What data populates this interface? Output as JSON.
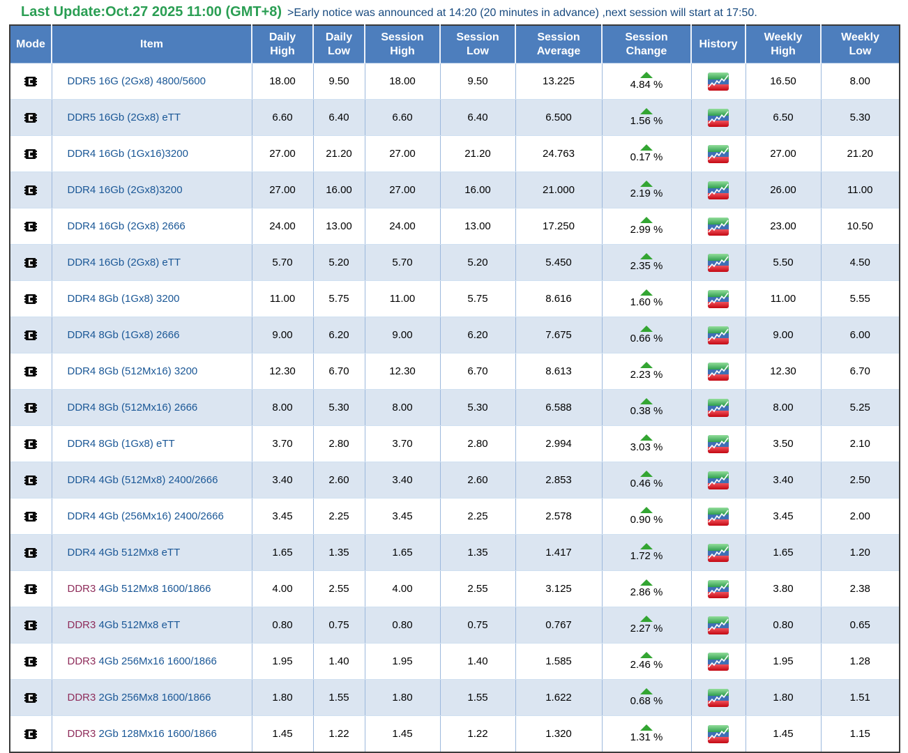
{
  "header_bar": {
    "last_update": "Last Update:Oct.27 2025 11:00 (GMT+8)",
    "notice": ">Early notice was announced at 14:20 (20 minutes in advance) ,next session will start at 17:50."
  },
  "colors": {
    "title_green": "#2a9e53",
    "notice_blue": "#17497e",
    "header_bg": "#4d7ebd",
    "row_alt_bg": "#dbe5f1",
    "item_link_blue": "#1a5796",
    "ddr3_maroon": "#8e2c5a",
    "up_arrow_green": "#33a532",
    "outer_border": "#3a3a3a"
  },
  "icons": {
    "mode": "chip-mode-icon",
    "history": "price-history-chart-icon",
    "change_up": "up-arrow-icon"
  },
  "table": {
    "columns": [
      {
        "key": "mode",
        "label": "Mode"
      },
      {
        "key": "item",
        "label": "Item"
      },
      {
        "key": "daily_high",
        "label": "Daily\nHigh"
      },
      {
        "key": "daily_low",
        "label": "Daily\nLow"
      },
      {
        "key": "session_high",
        "label": "Session\nHigh"
      },
      {
        "key": "session_low",
        "label": "Session\nLow"
      },
      {
        "key": "session_avg",
        "label": "Session\nAverage"
      },
      {
        "key": "session_change",
        "label": "Session\nChange"
      },
      {
        "key": "history",
        "label": "History"
      },
      {
        "key": "weekly_high",
        "label": "Weekly\nHigh"
      },
      {
        "key": "weekly_low",
        "label": "Weekly\nLow"
      }
    ],
    "rows": [
      {
        "prefix": "DDR5",
        "rest": " 16G (2Gx8) 4800/5600",
        "ddr3": false,
        "daily_high": "18.00",
        "daily_low": "9.50",
        "session_high": "18.00",
        "session_low": "9.50",
        "session_avg": "13.225",
        "change": "4.84 %",
        "change_dir": "up",
        "weekly_high": "16.50",
        "weekly_low": "8.00"
      },
      {
        "prefix": "DDR5",
        "rest": " 16Gb (2Gx8) eTT",
        "ddr3": false,
        "daily_high": "6.60",
        "daily_low": "6.40",
        "session_high": "6.60",
        "session_low": "6.40",
        "session_avg": "6.500",
        "change": "1.56 %",
        "change_dir": "up",
        "weekly_high": "6.50",
        "weekly_low": "5.30"
      },
      {
        "prefix": "DDR4",
        "rest": " 16Gb (1Gx16)3200",
        "ddr3": false,
        "daily_high": "27.00",
        "daily_low": "21.20",
        "session_high": "27.00",
        "session_low": "21.20",
        "session_avg": "24.763",
        "change": "0.17 %",
        "change_dir": "up",
        "weekly_high": "27.00",
        "weekly_low": "21.20"
      },
      {
        "prefix": "DDR4",
        "rest": " 16Gb (2Gx8)3200",
        "ddr3": false,
        "daily_high": "27.00",
        "daily_low": "16.00",
        "session_high": "27.00",
        "session_low": "16.00",
        "session_avg": "21.000",
        "change": "2.19 %",
        "change_dir": "up",
        "weekly_high": "26.00",
        "weekly_low": "11.00"
      },
      {
        "prefix": "DDR4",
        "rest": " 16Gb (2Gx8) 2666",
        "ddr3": false,
        "daily_high": "24.00",
        "daily_low": "13.00",
        "session_high": "24.00",
        "session_low": "13.00",
        "session_avg": "17.250",
        "change": "2.99 %",
        "change_dir": "up",
        "weekly_high": "23.00",
        "weekly_low": "10.50"
      },
      {
        "prefix": "DDR4",
        "rest": " 16Gb (2Gx8) eTT",
        "ddr3": false,
        "daily_high": "5.70",
        "daily_low": "5.20",
        "session_high": "5.70",
        "session_low": "5.20",
        "session_avg": "5.450",
        "change": "2.35 %",
        "change_dir": "up",
        "weekly_high": "5.50",
        "weekly_low": "4.50"
      },
      {
        "prefix": "DDR4",
        "rest": " 8Gb (1Gx8) 3200",
        "ddr3": false,
        "daily_high": "11.00",
        "daily_low": "5.75",
        "session_high": "11.00",
        "session_low": "5.75",
        "session_avg": "8.616",
        "change": "1.60 %",
        "change_dir": "up",
        "weekly_high": "11.00",
        "weekly_low": "5.55"
      },
      {
        "prefix": "DDR4",
        "rest": " 8Gb (1Gx8) 2666",
        "ddr3": false,
        "daily_high": "9.00",
        "daily_low": "6.20",
        "session_high": "9.00",
        "session_low": "6.20",
        "session_avg": "7.675",
        "change": "0.66 %",
        "change_dir": "up",
        "weekly_high": "9.00",
        "weekly_low": "6.00"
      },
      {
        "prefix": "DDR4",
        "rest": " 8Gb (512Mx16) 3200",
        "ddr3": false,
        "daily_high": "12.30",
        "daily_low": "6.70",
        "session_high": "12.30",
        "session_low": "6.70",
        "session_avg": "8.613",
        "change": "2.23 %",
        "change_dir": "up",
        "weekly_high": "12.30",
        "weekly_low": "6.70"
      },
      {
        "prefix": "DDR4",
        "rest": " 8Gb (512Mx16) 2666",
        "ddr3": false,
        "daily_high": "8.00",
        "daily_low": "5.30",
        "session_high": "8.00",
        "session_low": "5.30",
        "session_avg": "6.588",
        "change": "0.38 %",
        "change_dir": "up",
        "weekly_high": "8.00",
        "weekly_low": "5.25"
      },
      {
        "prefix": "DDR4",
        "rest": " 8Gb (1Gx8) eTT",
        "ddr3": false,
        "daily_high": "3.70",
        "daily_low": "2.80",
        "session_high": "3.70",
        "session_low": "2.80",
        "session_avg": "2.994",
        "change": "3.03 %",
        "change_dir": "up",
        "weekly_high": "3.50",
        "weekly_low": "2.10"
      },
      {
        "prefix": "DDR4",
        "rest": " 4Gb (512Mx8) 2400/2666",
        "ddr3": false,
        "daily_high": "3.40",
        "daily_low": "2.60",
        "session_high": "3.40",
        "session_low": "2.60",
        "session_avg": "2.853",
        "change": "0.46 %",
        "change_dir": "up",
        "weekly_high": "3.40",
        "weekly_low": "2.50"
      },
      {
        "prefix": "DDR4",
        "rest": " 4Gb (256Mx16) 2400/2666",
        "ddr3": false,
        "daily_high": "3.45",
        "daily_low": "2.25",
        "session_high": "3.45",
        "session_low": "2.25",
        "session_avg": "2.578",
        "change": "0.90 %",
        "change_dir": "up",
        "weekly_high": "3.45",
        "weekly_low": "2.00"
      },
      {
        "prefix": "DDR4",
        "rest": " 4Gb 512Mx8 eTT",
        "ddr3": false,
        "daily_high": "1.65",
        "daily_low": "1.35",
        "session_high": "1.65",
        "session_low": "1.35",
        "session_avg": "1.417",
        "change": "1.72 %",
        "change_dir": "up",
        "weekly_high": "1.65",
        "weekly_low": "1.20"
      },
      {
        "prefix": "DDR3",
        "rest": " 4Gb 512Mx8 1600/1866",
        "ddr3": true,
        "daily_high": "4.00",
        "daily_low": "2.55",
        "session_high": "4.00",
        "session_low": "2.55",
        "session_avg": "3.125",
        "change": "2.86 %",
        "change_dir": "up",
        "weekly_high": "3.80",
        "weekly_low": "2.38"
      },
      {
        "prefix": "DDR3",
        "rest": " 4Gb 512Mx8 eTT",
        "ddr3": true,
        "daily_high": "0.80",
        "daily_low": "0.75",
        "session_high": "0.80",
        "session_low": "0.75",
        "session_avg": "0.767",
        "change": "2.27 %",
        "change_dir": "up",
        "weekly_high": "0.80",
        "weekly_low": "0.65"
      },
      {
        "prefix": "DDR3",
        "rest": " 4Gb 256Mx16 1600/1866",
        "ddr3": true,
        "daily_high": "1.95",
        "daily_low": "1.40",
        "session_high": "1.95",
        "session_low": "1.40",
        "session_avg": "1.585",
        "change": "2.46 %",
        "change_dir": "up",
        "weekly_high": "1.95",
        "weekly_low": "1.28"
      },
      {
        "prefix": "DDR3",
        "rest": " 2Gb 256Mx8 1600/1866",
        "ddr3": true,
        "daily_high": "1.80",
        "daily_low": "1.55",
        "session_high": "1.80",
        "session_low": "1.55",
        "session_avg": "1.622",
        "change": "0.68 %",
        "change_dir": "up",
        "weekly_high": "1.80",
        "weekly_low": "1.51"
      },
      {
        "prefix": "DDR3",
        "rest": " 2Gb 128Mx16 1600/1866",
        "ddr3": true,
        "daily_high": "1.45",
        "daily_low": "1.22",
        "session_high": "1.45",
        "session_low": "1.22",
        "session_avg": "1.320",
        "change": "1.31 %",
        "change_dir": "up",
        "weekly_high": "1.45",
        "weekly_low": "1.15"
      }
    ]
  }
}
